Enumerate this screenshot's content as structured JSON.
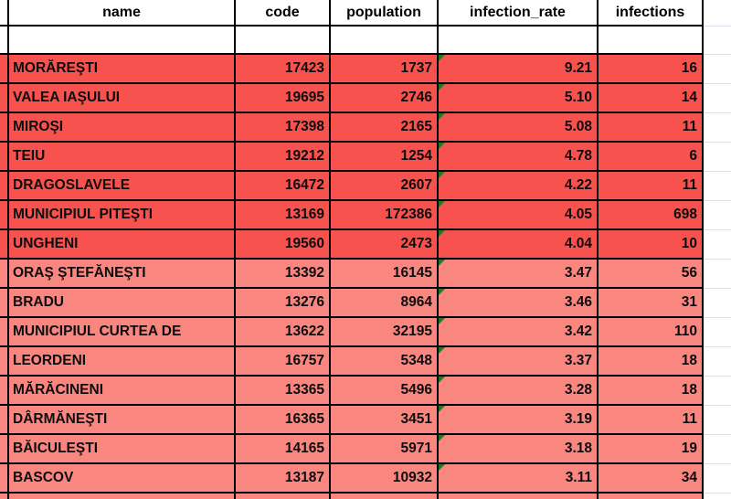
{
  "table": {
    "headers": [
      "name",
      "code",
      "population",
      "infection_rate",
      "infections"
    ],
    "rows": [
      {
        "name": "MORĂREŞTI",
        "code": "17423",
        "population": "1737",
        "infection_rate": "9.21",
        "infections": "16",
        "tier": "high"
      },
      {
        "name": "VALEA IAŞULUI",
        "code": "19695",
        "population": "2746",
        "infection_rate": "5.10",
        "infections": "14",
        "tier": "high"
      },
      {
        "name": "MIROŞI",
        "code": "17398",
        "population": "2165",
        "infection_rate": "5.08",
        "infections": "11",
        "tier": "high"
      },
      {
        "name": "TEIU",
        "code": "19212",
        "population": "1254",
        "infection_rate": "4.78",
        "infections": "6",
        "tier": "high"
      },
      {
        "name": "DRAGOSLAVELE",
        "code": "16472",
        "population": "2607",
        "infection_rate": "4.22",
        "infections": "11",
        "tier": "high"
      },
      {
        "name": "MUNICIPIUL PITEŞTI",
        "code": "13169",
        "population": "172386",
        "infection_rate": "4.05",
        "infections": "698",
        "tier": "high"
      },
      {
        "name": "UNGHENI",
        "code": "19560",
        "population": "2473",
        "infection_rate": "4.04",
        "infections": "10",
        "tier": "high"
      },
      {
        "name": "ORAŞ ŞTEFĂNEŞTI",
        "code": "13392",
        "population": "16145",
        "infection_rate": "3.47",
        "infections": "56",
        "tier": "medium"
      },
      {
        "name": "BRADU",
        "code": "13276",
        "population": "8964",
        "infection_rate": "3.46",
        "infections": "31",
        "tier": "medium"
      },
      {
        "name": "MUNICIPIUL CURTEA DE",
        "code": "13622",
        "population": "32195",
        "infection_rate": "3.42",
        "infections": "110",
        "tier": "medium"
      },
      {
        "name": "LEORDENI",
        "code": "16757",
        "population": "5348",
        "infection_rate": "3.37",
        "infections": "18",
        "tier": "medium"
      },
      {
        "name": "MĂRĂCINENI",
        "code": "13365",
        "population": "5496",
        "infection_rate": "3.28",
        "infections": "18",
        "tier": "medium"
      },
      {
        "name": "DÂRMĂNEŞTI",
        "code": "16365",
        "population": "3451",
        "infection_rate": "3.19",
        "infections": "11",
        "tier": "medium"
      },
      {
        "name": "BĂICULEŞTI",
        "code": "14165",
        "population": "5971",
        "infection_rate": "3.18",
        "infections": "19",
        "tier": "medium"
      },
      {
        "name": "BASCOV",
        "code": "13187",
        "population": "10932",
        "infection_rate": "3.11",
        "infections": "34",
        "tier": "medium"
      }
    ],
    "partial_next_row_tier": "medium"
  },
  "colors": {
    "row_high": "#F7524D",
    "row_medium": "#F9867F",
    "cell_border": "#000000",
    "grid_line": "#D8DEE9",
    "error_indicator_green": "#217A21"
  },
  "icons": {
    "error_indicator": "error-indicator-icon"
  }
}
